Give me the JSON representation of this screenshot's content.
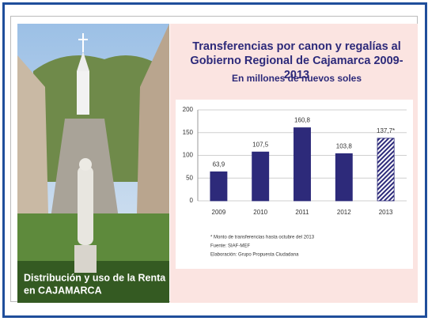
{
  "photo_caption": [
    "Distribución y uso de la Renta",
    "en CAJAMARCA"
  ],
  "chart_data": {
    "type": "bar",
    "title": "Transferencias por canon y regalías al Gobierno Regional de Cajamarca 2009-2013",
    "subtitle": "En millones de nuevos soles",
    "categories": [
      "2009",
      "2010",
      "2011",
      "2012",
      "2013"
    ],
    "values": [
      63.9,
      107.5,
      160.8,
      103.8,
      137.7
    ],
    "value_labels": [
      "63,9",
      "107,5",
      "160,8",
      "103,8",
      "137,7*"
    ],
    "hatched": [
      false,
      false,
      false,
      false,
      true
    ],
    "color": "#2d2a7a",
    "ylim": [
      0,
      200
    ],
    "yticks": [
      0,
      50,
      100,
      150,
      200
    ],
    "grid": true,
    "notes": [
      "* Monto de transferencias hasta octubre del 2013",
      "Fuente: SIAF-MEF",
      "Elaboración: Grupo Propuesta Ciudadana"
    ]
  }
}
